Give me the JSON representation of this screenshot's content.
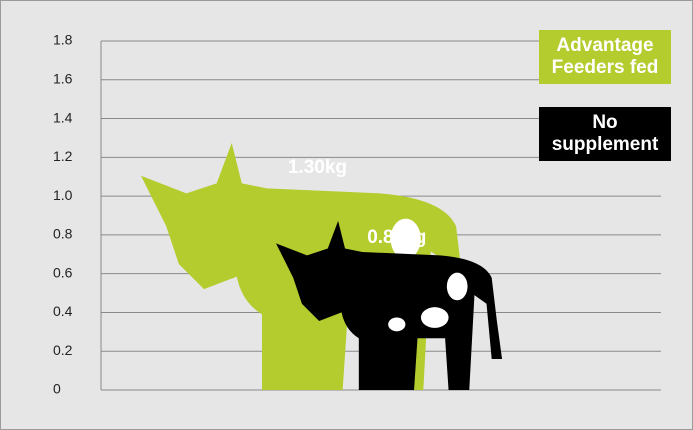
{
  "chart_data": {
    "type": "bar",
    "series": [
      {
        "name": "Advantage Feeders fed",
        "color": "#b5cc2e",
        "values": [
          1.3
        ],
        "value_labels": [
          "1.30kg"
        ]
      },
      {
        "name": "No supplement",
        "color": "#000000",
        "values": [
          0.89
        ],
        "value_labels": [
          "0.89kg"
        ]
      }
    ],
    "ylim": [
      0,
      1.8
    ],
    "yticks": [
      0,
      0.2,
      0.4,
      0.6,
      0.8,
      {
        "value": 1,
        "label": "1.0"
      },
      1.2,
      1.4,
      1.6,
      1.8
    ],
    "grid": true
  }
}
